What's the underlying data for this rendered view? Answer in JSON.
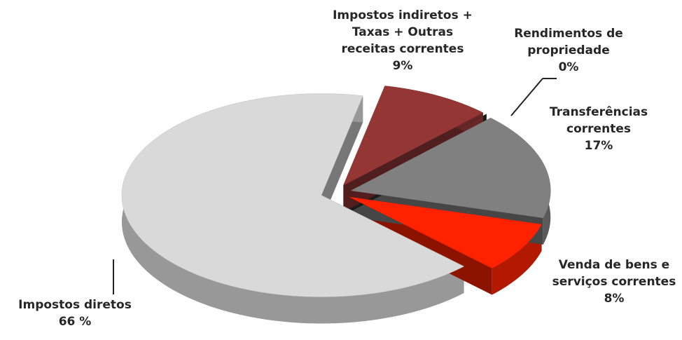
{
  "chart_data": {
    "type": "pie",
    "categories": [
      "Impostos indiretos + Taxas + Outras receitas correntes",
      "Rendimentos de propriedade",
      "Transferências correntes",
      "Venda de bens e serviços correntes",
      "Impostos diretos"
    ],
    "values": [
      9,
      0,
      17,
      8,
      66
    ],
    "value_labels": [
      "9%",
      "0%",
      "17%",
      "8%",
      "66 %"
    ],
    "colors": [
      "#943634",
      "#333333",
      "#808080",
      "#ff2200",
      "#d9d9d9"
    ]
  }
}
